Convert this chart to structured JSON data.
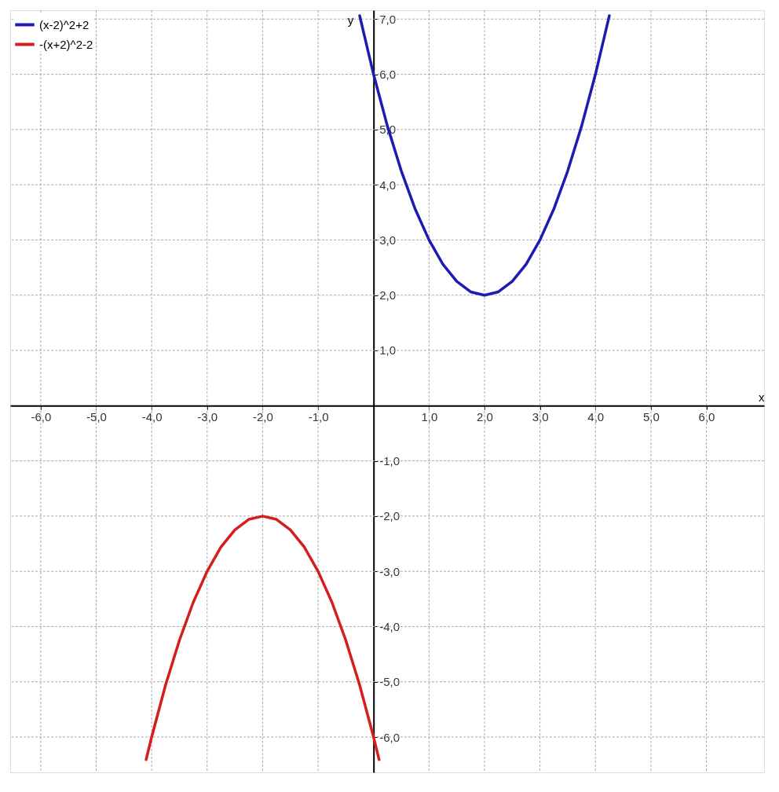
{
  "chart_data": {
    "type": "line",
    "xlabel": "x",
    "ylabel": "y",
    "xlim": [
      -6.55,
      7.04
    ],
    "ylim": [
      -6.64,
      7.16
    ],
    "xticks": [
      {
        "value": -6,
        "label": "-6,0"
      },
      {
        "value": -5,
        "label": "-5,0"
      },
      {
        "value": -4,
        "label": "-4,0"
      },
      {
        "value": -3,
        "label": "-3,0"
      },
      {
        "value": -2,
        "label": "-2,0"
      },
      {
        "value": -1,
        "label": "-1,0"
      },
      {
        "value": 1,
        "label": "1,0"
      },
      {
        "value": 2,
        "label": "2,0"
      },
      {
        "value": 3,
        "label": "3,0"
      },
      {
        "value": 4,
        "label": "4,0"
      },
      {
        "value": 5,
        "label": "5,0"
      },
      {
        "value": 6,
        "label": "6,0"
      }
    ],
    "yticks": [
      {
        "value": -6,
        "label": "-6,0"
      },
      {
        "value": -5,
        "label": "-5,0"
      },
      {
        "value": -4,
        "label": "-4,0"
      },
      {
        "value": -3,
        "label": "-3,0"
      },
      {
        "value": -2,
        "label": "-2,0"
      },
      {
        "value": -1,
        "label": "-1,0"
      },
      {
        "value": 1,
        "label": "1,0"
      },
      {
        "value": 2,
        "label": "2,0"
      },
      {
        "value": 3,
        "label": "3,0"
      },
      {
        "value": 4,
        "label": "4,0"
      },
      {
        "value": 5,
        "label": "5,0"
      },
      {
        "value": 6,
        "label": "6,0"
      },
      {
        "value": 7,
        "label": "7,0"
      }
    ],
    "grid": true,
    "legend": "top left",
    "marker": "none",
    "line_style": "solid",
    "series": [
      {
        "name": "(x-2)^2+2",
        "color": "#1c1cb0",
        "x": [
          -0.25,
          0,
          0.25,
          0.5,
          0.75,
          1,
          1.25,
          1.5,
          1.75,
          2,
          2.25,
          2.5,
          2.75,
          3,
          3.25,
          3.5,
          3.75,
          4,
          4.25
        ],
        "values": [
          7.06,
          6,
          5.06,
          4.25,
          3.56,
          3,
          2.56,
          2.25,
          2.06,
          2,
          2.06,
          2.25,
          2.56,
          3,
          3.56,
          4.25,
          5.06,
          6,
          7.06
        ]
      },
      {
        "name": "-(x+2)^2-2",
        "color": "#d41e1e",
        "x": [
          -4.1,
          -4,
          -3.75,
          -3.5,
          -3.25,
          -3,
          -2.75,
          -2.5,
          -2.25,
          -2,
          -1.75,
          -1.5,
          -1.25,
          -1,
          -0.75,
          -0.5,
          -0.25,
          0,
          0.1
        ],
        "values": [
          -6.41,
          -6,
          -5.06,
          -4.25,
          -3.56,
          -3,
          -2.56,
          -2.25,
          -2.06,
          -2,
          -2.06,
          -2.25,
          -2.56,
          -3,
          -3.56,
          -4.25,
          -5.06,
          -6,
          -6.41
        ]
      }
    ]
  }
}
